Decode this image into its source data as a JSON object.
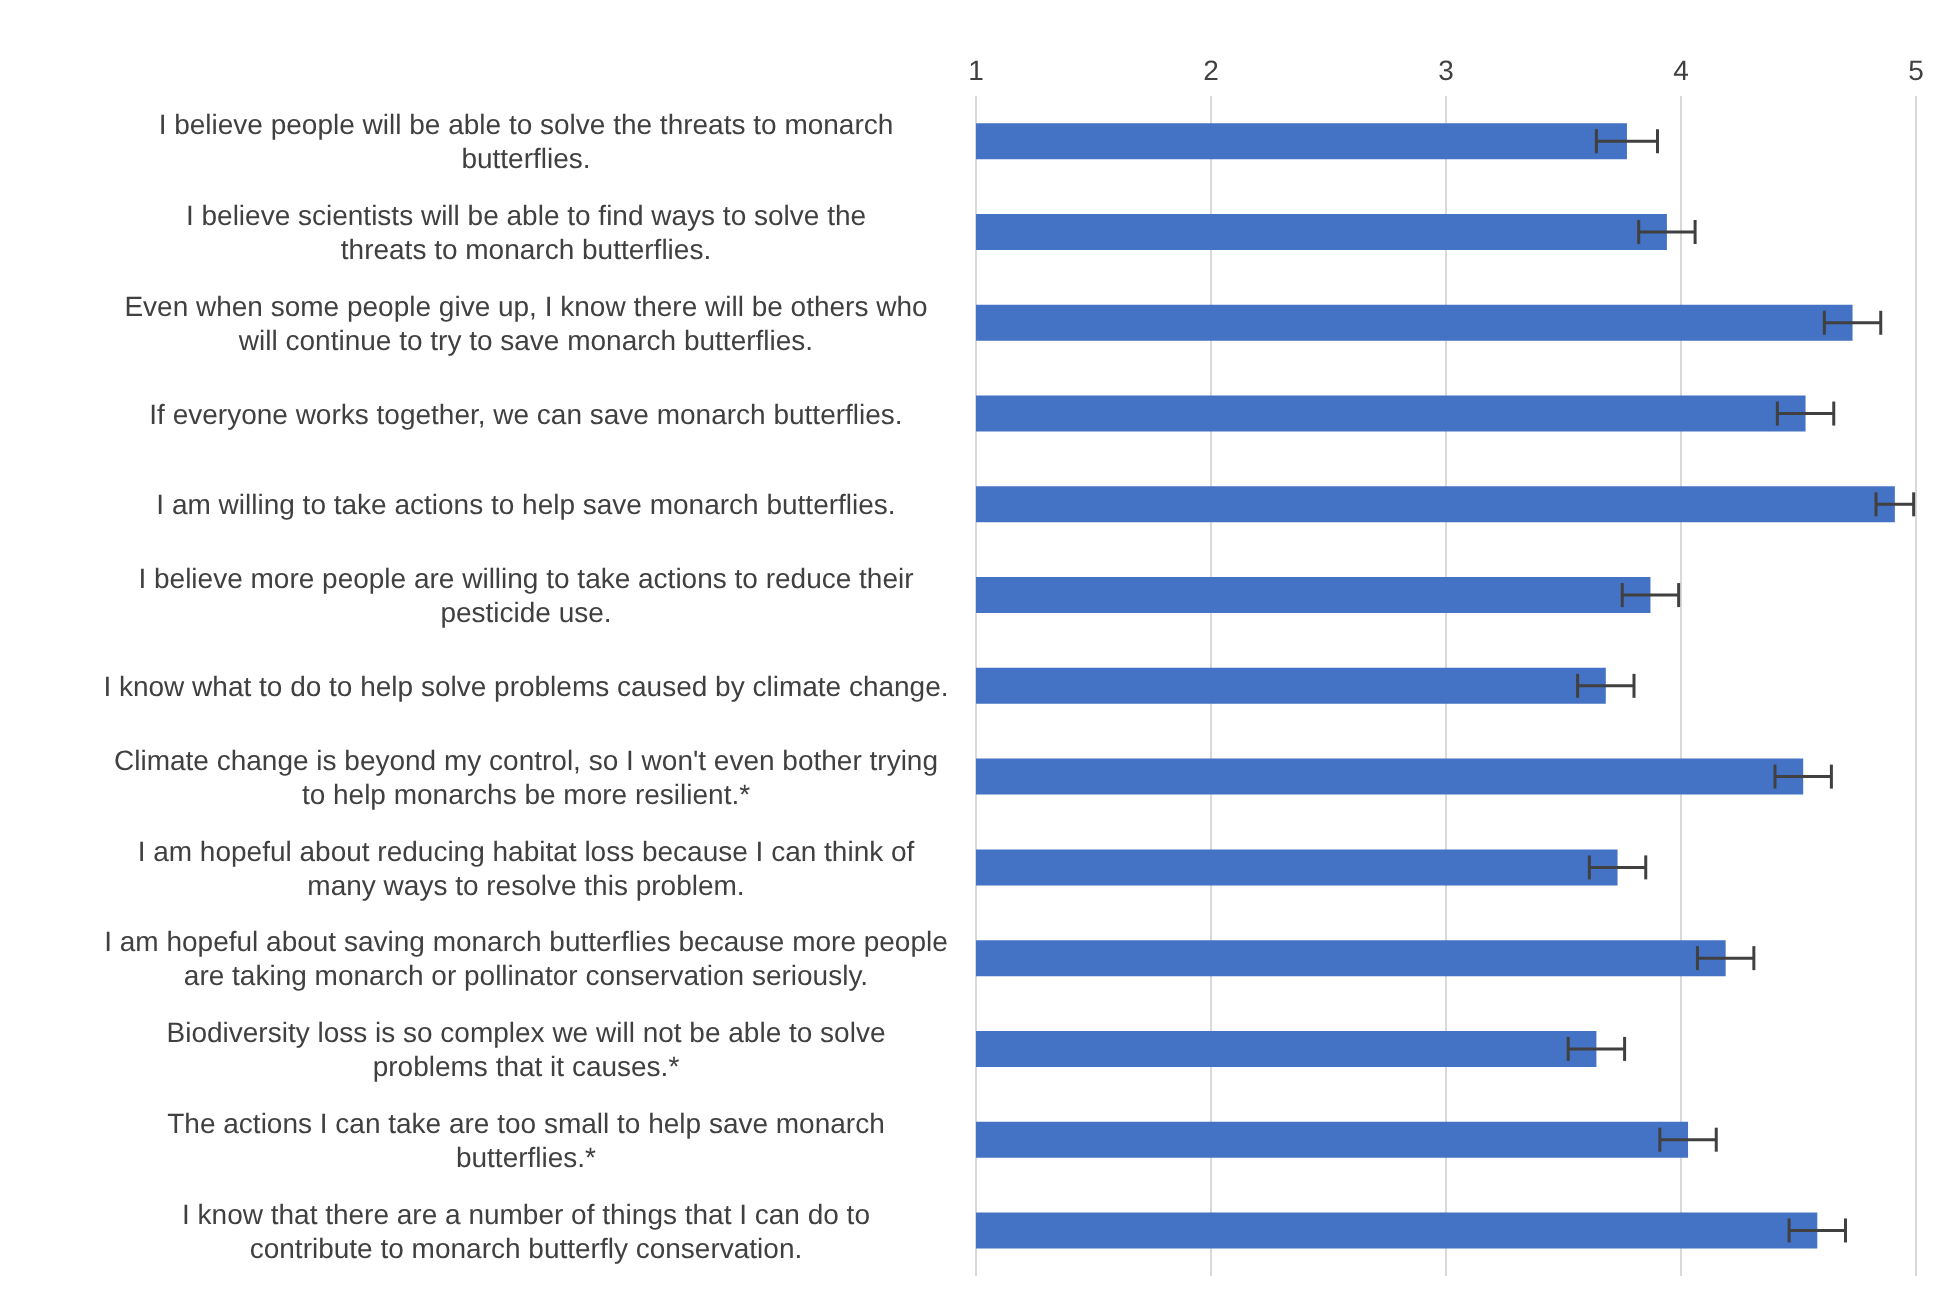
{
  "chart_data": {
    "type": "bar",
    "orientation": "horizontal",
    "categories": [
      "I believe people will be able to solve the threats to monarch butterflies.",
      "I believe scientists will be able to find ways to solve the threats to monarch butterflies.",
      "Even when some people give up, I know there will be others who will continue to try to save monarch butterflies.",
      "If everyone works together, we can save monarch butterflies.",
      "I am willing to take actions to help save monarch butterflies.",
      "I believe more people are willing to take actions to reduce their pesticide use.",
      "I know what to do to help solve problems caused by climate change.",
      "Climate change is beyond my control, so I won't even bother trying to help monarchs be more resilient.*",
      "I am hopeful about reducing habitat loss because I can think of many ways to resolve this problem.",
      "I am hopeful about saving monarch butterflies because more people are taking monarch or pollinator conservation seriously.",
      "Biodiversity loss is so complex we will not be able to solve problems that it causes.*",
      "The actions I can take are too small to help save monarch butterflies.*",
      "I know that there are a number of things that I can do to contribute to monarch butterfly conservation."
    ],
    "values": [
      3.77,
      3.94,
      4.73,
      4.53,
      4.91,
      3.87,
      3.68,
      4.52,
      3.73,
      4.19,
      3.64,
      4.03,
      4.58
    ],
    "errors": [
      0.13,
      0.12,
      0.12,
      0.12,
      0.08,
      0.12,
      0.12,
      0.12,
      0.12,
      0.12,
      0.12,
      0.12,
      0.12
    ],
    "color": "#4472c4",
    "xlim": [
      1,
      5
    ],
    "xticks": [
      1,
      2,
      3,
      4,
      5
    ],
    "grid": "x"
  }
}
